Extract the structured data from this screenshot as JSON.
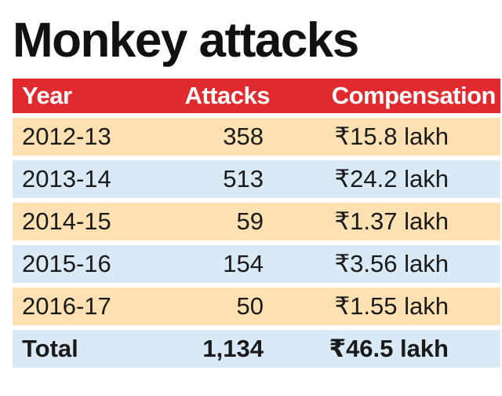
{
  "chart_data": {
    "type": "table",
    "title": "Monkey attacks",
    "columns": [
      "Year",
      "Attacks",
      "Compensation"
    ],
    "rows": [
      [
        "2012-13",
        "358",
        "₹15.8 lakh"
      ],
      [
        "2013-14",
        "513",
        "₹24.2 lakh"
      ],
      [
        "2014-15",
        "59",
        "₹1.37 lakh"
      ],
      [
        "2015-16",
        "154",
        "₹3.56 lakh"
      ],
      [
        "2016-17",
        "50",
        "₹1.55 lakh"
      ]
    ],
    "total": [
      "Total",
      "1,134",
      "₹46.5 lakh"
    ]
  },
  "colors": {
    "header_bg": "#e02a2e",
    "header_text": "#ffffff",
    "row_odd": "#fde1b3",
    "row_even": "#d9e9f5",
    "text": "#1a1a1a"
  }
}
